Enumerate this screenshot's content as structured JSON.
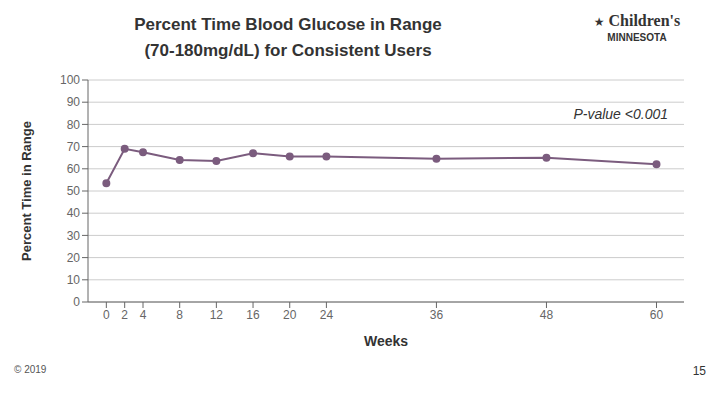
{
  "chart_data": {
    "type": "line",
    "title": "Percent Time Blood Glucose in Range",
    "subtitle": "(70-180mg/dL) for Consistent Users",
    "xlabel": "Weeks",
    "ylabel": "Percent Time in Range",
    "x": [
      0,
      2,
      4,
      8,
      12,
      16,
      20,
      24,
      36,
      48,
      60
    ],
    "values": [
      53.5,
      69.0,
      67.5,
      64.0,
      63.5,
      67.0,
      65.5,
      65.5,
      64.5,
      65.0,
      62.0
    ],
    "color": "#7B5C7E",
    "marker": "circle",
    "xlim": [
      -2,
      63
    ],
    "ylim": [
      0,
      100
    ],
    "xticks": [
      0,
      2,
      4,
      8,
      12,
      16,
      20,
      24,
      36,
      48,
      60
    ],
    "yticks": [
      0,
      10,
      20,
      30,
      40,
      50,
      60,
      70,
      80,
      90,
      100
    ],
    "grid": true,
    "annotations": [
      "P-value <0.001",
      "© 2019",
      "15",
      "★",
      "Children's",
      "MINNESOTA"
    ]
  }
}
